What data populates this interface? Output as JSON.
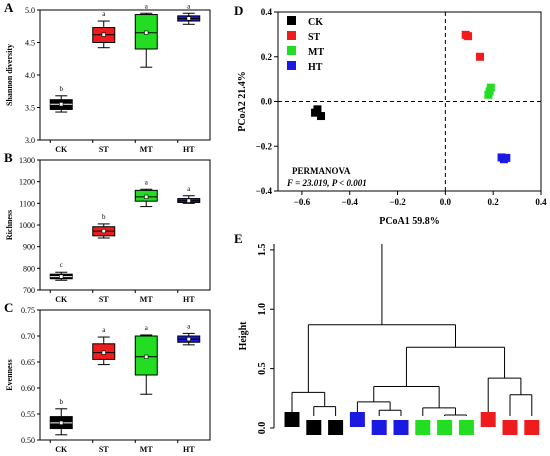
{
  "colors": {
    "CK": "#000000",
    "ST": "#ee1c1c",
    "MT": "#22dd22",
    "HT": "#1a1ae0"
  },
  "chart_data": [
    {
      "panel": "A",
      "type": "box",
      "ylabel": "Shannon diversity",
      "ylim": [
        3.0,
        5.0
      ],
      "yticks": [
        "3.0",
        "3.5",
        "4.0",
        "4.5",
        "5.0"
      ],
      "categories": [
        "CK",
        "ST",
        "MT",
        "HT"
      ],
      "boxes": [
        {
          "group": "CK",
          "min": 3.43,
          "q1": 3.47,
          "median": 3.55,
          "q3": 3.62,
          "max": 3.68,
          "mean": 3.55,
          "letter": "b"
        },
        {
          "group": "ST",
          "min": 4.42,
          "q1": 4.5,
          "median": 4.62,
          "q3": 4.73,
          "max": 4.83,
          "mean": 4.62,
          "letter": "a"
        },
        {
          "group": "MT",
          "min": 4.12,
          "q1": 4.4,
          "median": 4.65,
          "q3": 4.93,
          "max": 4.95,
          "mean": 4.65,
          "letter": "a"
        },
        {
          "group": "HT",
          "min": 4.78,
          "q1": 4.83,
          "median": 4.87,
          "q3": 4.91,
          "max": 4.95,
          "mean": 4.87,
          "letter": "a"
        }
      ]
    },
    {
      "panel": "B",
      "type": "box",
      "ylabel": "Richness",
      "ylim": [
        700,
        1300
      ],
      "yticks": [
        "700",
        "800",
        "900",
        "1000",
        "1100",
        "1200",
        "1300"
      ],
      "categories": [
        "CK",
        "ST",
        "MT",
        "HT"
      ],
      "boxes": [
        {
          "group": "CK",
          "min": 745,
          "q1": 752,
          "median": 762,
          "q3": 773,
          "max": 782,
          "mean": 762,
          "letter": "c"
        },
        {
          "group": "ST",
          "min": 940,
          "q1": 950,
          "median": 972,
          "q3": 992,
          "max": 1005,
          "mean": 972,
          "letter": "b"
        },
        {
          "group": "MT",
          "min": 1085,
          "q1": 1110,
          "median": 1130,
          "q3": 1160,
          "max": 1165,
          "mean": 1130,
          "letter": "a"
        },
        {
          "group": "HT",
          "min": 1100,
          "q1": 1104,
          "median": 1112,
          "q3": 1122,
          "max": 1135,
          "mean": 1112,
          "letter": "a"
        }
      ]
    },
    {
      "panel": "C",
      "type": "box",
      "ylabel": "Evenness",
      "ylim": [
        0.5,
        0.75
      ],
      "yticks": [
        "0.50",
        "0.55",
        "0.60",
        "0.65",
        "0.70",
        "0.75"
      ],
      "categories": [
        "CK",
        "ST",
        "MT",
        "HT"
      ],
      "boxes": [
        {
          "group": "CK",
          "min": 0.51,
          "q1": 0.522,
          "median": 0.533,
          "q3": 0.545,
          "max": 0.56,
          "mean": 0.533,
          "letter": "b"
        },
        {
          "group": "ST",
          "min": 0.645,
          "q1": 0.655,
          "median": 0.668,
          "q3": 0.685,
          "max": 0.698,
          "mean": 0.668,
          "letter": "a"
        },
        {
          "group": "MT",
          "min": 0.588,
          "q1": 0.625,
          "median": 0.66,
          "q3": 0.7,
          "max": 0.702,
          "mean": 0.66,
          "letter": "a"
        },
        {
          "group": "HT",
          "min": 0.683,
          "q1": 0.688,
          "median": 0.694,
          "q3": 0.7,
          "max": 0.705,
          "mean": 0.694,
          "letter": "a"
        }
      ]
    },
    {
      "panel": "D",
      "type": "scatter",
      "xlabel": "PCoA1 59.8%",
      "ylabel": "PCoA2 21.4%",
      "xlim": [
        -0.7,
        0.4
      ],
      "ylim": [
        -0.4,
        0.4
      ],
      "xticks": [
        "-0.6",
        "-0.4",
        "-0.2",
        "0.0",
        "0.2",
        "0.4"
      ],
      "yticks": [
        "-0.4",
        "-0.2",
        "0.0",
        "0.2",
        "0.4"
      ],
      "legend": [
        "CK",
        "ST",
        "MT",
        "HT"
      ],
      "legend_position": "top-left",
      "annotation_title": "PERMANOVA",
      "annotation_stats": "F = 23.019, P < 0.001",
      "series": [
        {
          "name": "CK",
          "points": [
            [
              -0.545,
              -0.05
            ],
            [
              -0.535,
              -0.035
            ],
            [
              -0.52,
              -0.065
            ]
          ]
        },
        {
          "name": "ST",
          "points": [
            [
              0.085,
              0.298
            ],
            [
              0.095,
              0.292
            ],
            [
              0.145,
              0.2
            ]
          ]
        },
        {
          "name": "MT",
          "points": [
            [
              0.19,
              0.062
            ],
            [
              0.185,
              0.045
            ],
            [
              0.18,
              0.03
            ]
          ]
        },
        {
          "name": "HT",
          "points": [
            [
              0.235,
              -0.25
            ],
            [
              0.245,
              -0.258
            ],
            [
              0.255,
              -0.252
            ]
          ]
        }
      ]
    },
    {
      "panel": "E",
      "type": "dendrogram",
      "ylabel": "Height",
      "ylim": [
        0,
        1.6
      ],
      "yticks": [
        "0.0",
        "0.5",
        "1.0",
        "1.5"
      ],
      "leaves": [
        "CK",
        "CK",
        "CK",
        "HT",
        "HT",
        "HT",
        "MT",
        "MT",
        "MT",
        "ST",
        "ST",
        "ST"
      ],
      "merges": [
        {
          "left": [
            1,
            2
          ],
          "height": 0.18
        },
        {
          "left": [
            0,
            "m1"
          ],
          "height": 0.3
        },
        {
          "left": [
            4,
            5
          ],
          "height": 0.15
        },
        {
          "left": [
            3,
            "m3"
          ],
          "height": 0.22
        },
        {
          "left": [
            7,
            8
          ],
          "height": 0.11
        },
        {
          "left": [
            6,
            "m5"
          ],
          "height": 0.17
        },
        {
          "left": [
            "m4",
            "m6"
          ],
          "height": 0.35
        },
        {
          "left": [
            10,
            11
          ],
          "height": 0.28
        },
        {
          "left": [
            9,
            "m8"
          ],
          "height": 0.42
        },
        {
          "left": [
            "m7",
            "m9"
          ],
          "height": 0.68
        },
        {
          "left": [
            "m2",
            "m10"
          ],
          "height": 0.87
        },
        {
          "left": [
            "m11"
          ],
          "height": 1.55
        }
      ]
    }
  ]
}
